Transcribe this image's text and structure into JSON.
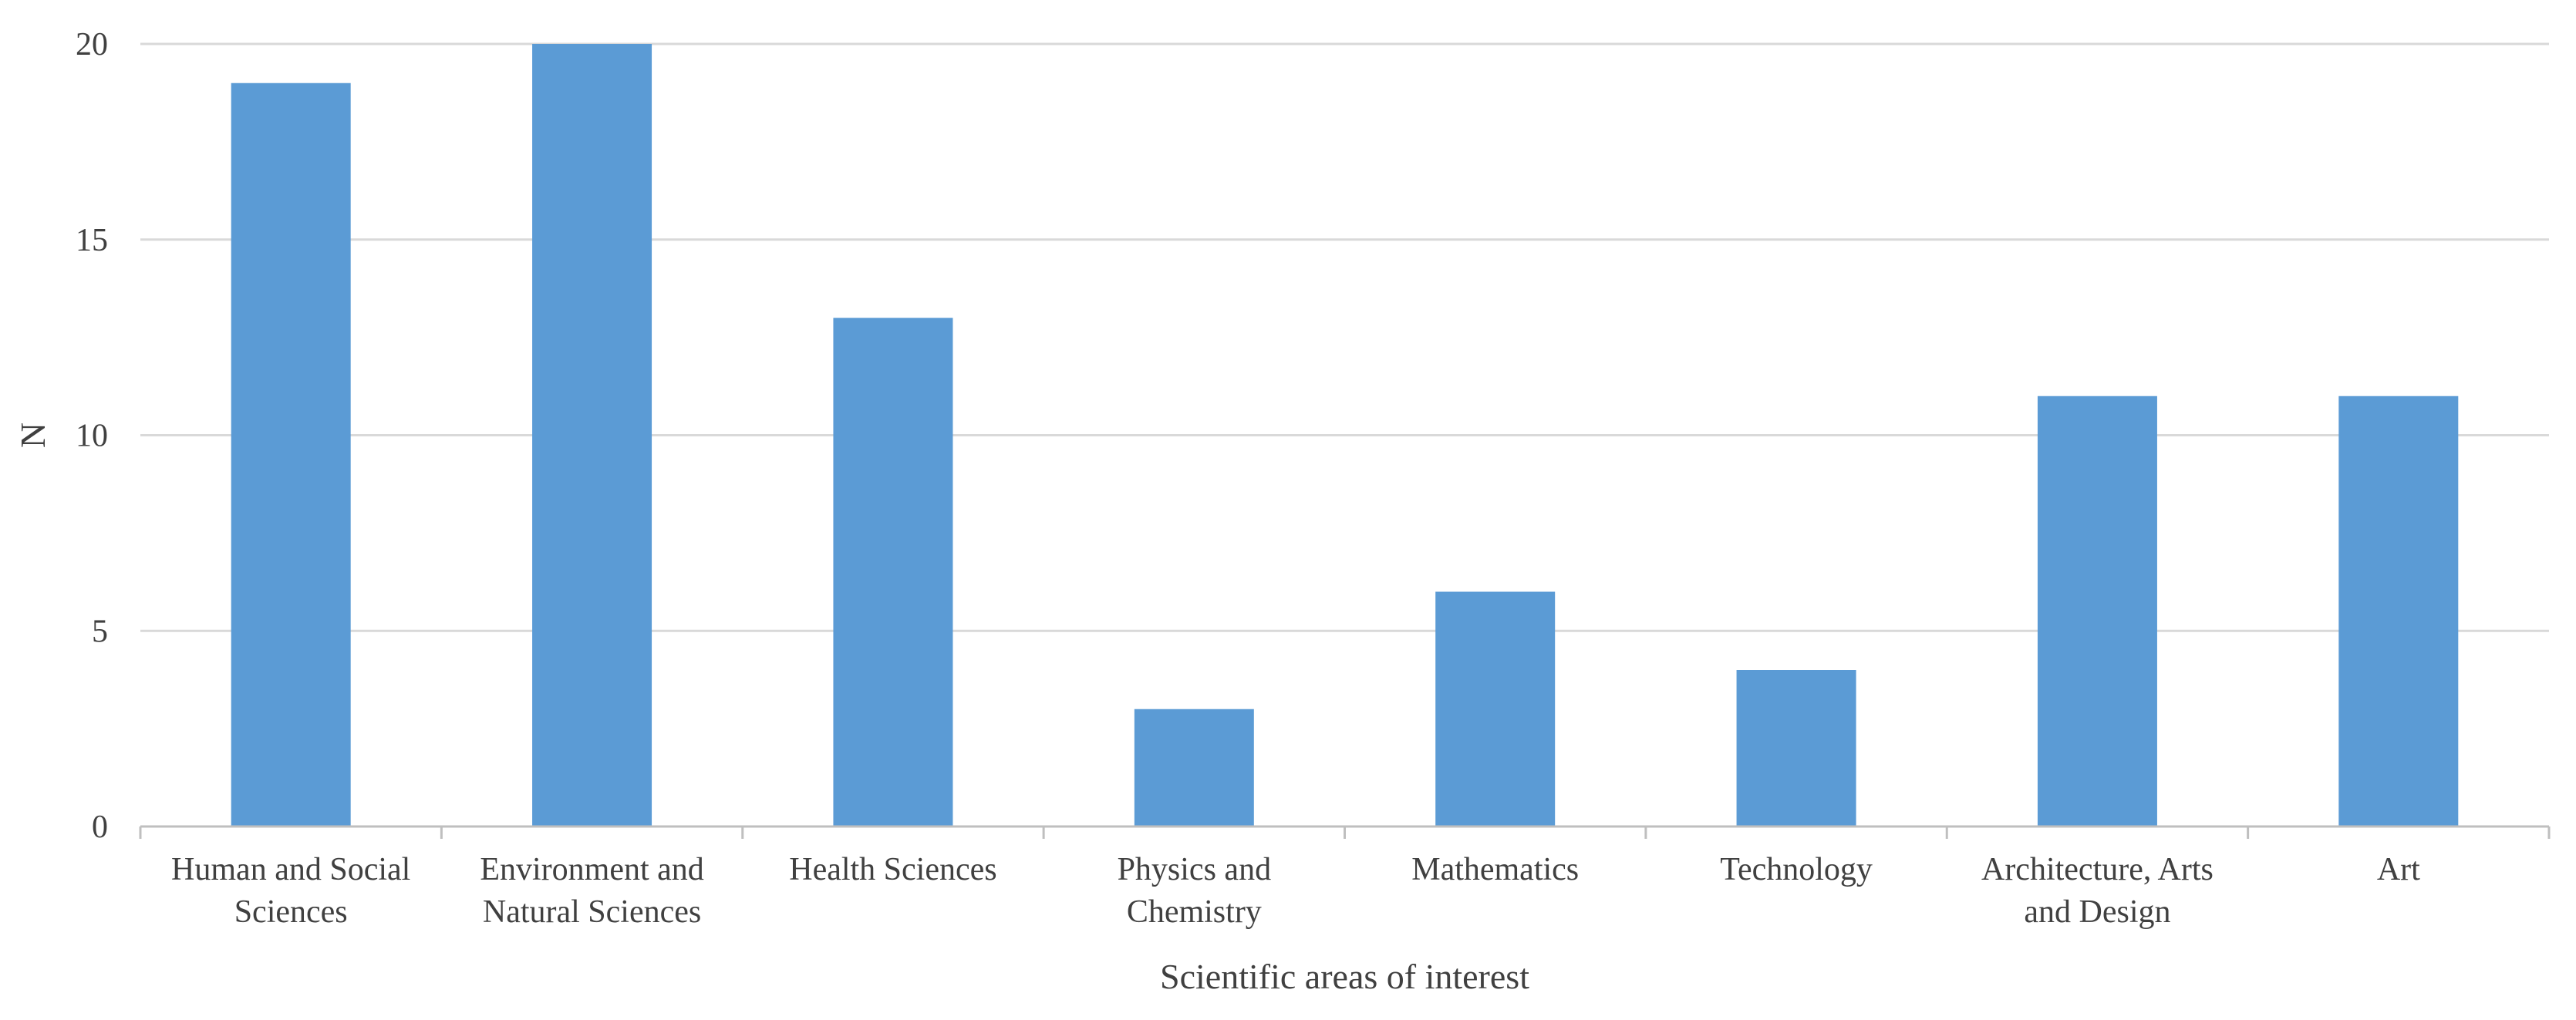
{
  "chart_data": {
    "type": "bar",
    "title": "",
    "xlabel": "Scientific areas of interest",
    "ylabel": "N",
    "ylim": [
      0,
      20
    ],
    "yticks": [
      0,
      5,
      10,
      15,
      20
    ],
    "grid": true,
    "categories": [
      [
        "Human and Social",
        "Sciences"
      ],
      [
        "Environment and",
        "Natural Sciences"
      ],
      [
        "Health Sciences"
      ],
      [
        "Physics and",
        "Chemistry"
      ],
      [
        "Mathematics"
      ],
      [
        "Technology"
      ],
      [
        "Architecture, Arts",
        "and Design"
      ],
      [
        "Art"
      ]
    ],
    "values": [
      19,
      20,
      13,
      3,
      6,
      4,
      11,
      11
    ],
    "colors": {
      "bar": "#5b9bd5",
      "grid": "#d9d9d9",
      "axis": "#bfbfbf",
      "text": "#404040"
    }
  }
}
